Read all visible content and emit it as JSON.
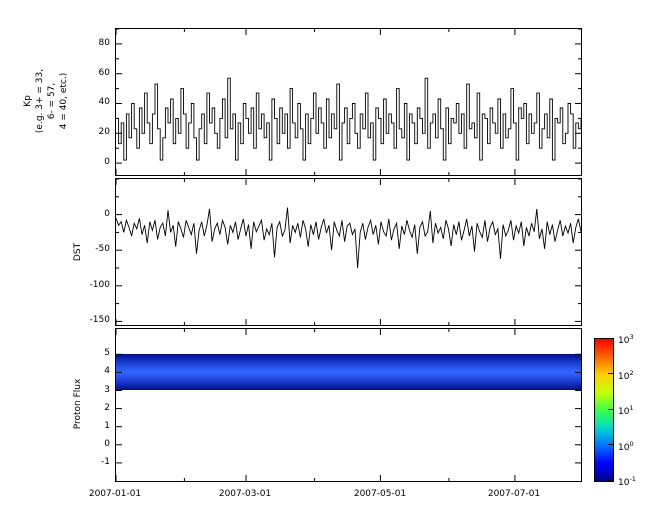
{
  "figure": {
    "background": "#ffffff",
    "x_axis": {
      "labels": [
        "2007-01-01",
        "2007-03-01",
        "2007-05-01",
        "2007-07-01"
      ],
      "major_fracs": [
        0,
        0.2796,
        0.5687,
        0.8578
      ],
      "minor_fracs": [
        0.147,
        0.427,
        0.716
      ]
    }
  },
  "panels": {
    "kp": {
      "ylabel_lines": [
        "Kp",
        "(e.g. 3+ = 33,",
        "6- = 57,",
        "4 = 40, etc.)"
      ]
    },
    "dst": {
      "ylabel": "DST"
    },
    "proton": {
      "ylabel": "Proton Flux"
    }
  },
  "colorbar": {
    "colors": [
      "#00008a",
      "#0000ff",
      "#0073ff",
      "#00d9c8",
      "#3cff46",
      "#c8ff00",
      "#ffcf00",
      "#ff6400",
      "#ff0000"
    ],
    "ticks": [
      {
        "base": "10",
        "exp": "3"
      },
      {
        "base": "10",
        "exp": "2"
      },
      {
        "base": "10",
        "exp": "1"
      },
      {
        "base": "10",
        "exp": "0"
      },
      {
        "base": "10",
        "exp": "-1"
      }
    ]
  },
  "chart_data": [
    {
      "type": "line",
      "name": "Kp",
      "x_start": "2007-01-01",
      "x_end": "2007-07-31",
      "ylim": [
        -8,
        90
      ],
      "yticks": [
        0,
        20,
        40,
        60,
        80
      ],
      "line_color": "#000000",
      "values": [
        30,
        13,
        27,
        2,
        33,
        17,
        40,
        23,
        10,
        37,
        20,
        47,
        27,
        13,
        33,
        53,
        23,
        2,
        17,
        37,
        27,
        43,
        13,
        30,
        20,
        50,
        33,
        10,
        27,
        40,
        17,
        2,
        23,
        33,
        13,
        47,
        27,
        37,
        20,
        10,
        30,
        43,
        17,
        57,
        23,
        33,
        2,
        27,
        13,
        40,
        30,
        20,
        37,
        10,
        47,
        23,
        33,
        17,
        27,
        2,
        43,
        30,
        13,
        37,
        20,
        33,
        10,
        50,
        27,
        17,
        40,
        23,
        2,
        33,
        13,
        30,
        47,
        20,
        37,
        27,
        10,
        43,
        17,
        33,
        23,
        53,
        2,
        27,
        37,
        13,
        30,
        40,
        20,
        10,
        33,
        23,
        47,
        17,
        27,
        2,
        37,
        30,
        13,
        43,
        20,
        33,
        27,
        10,
        50,
        23,
        17,
        40,
        2,
        33,
        27,
        13,
        37,
        30,
        20,
        57,
        10,
        27,
        33,
        17,
        43,
        23,
        2,
        37,
        13,
        30,
        27,
        40,
        20,
        33,
        10,
        53,
        23,
        27,
        17,
        47,
        2,
        33,
        30,
        13,
        37,
        27,
        20,
        43,
        10,
        33,
        17,
        23,
        50,
        27,
        2,
        37,
        30,
        40,
        13,
        33,
        20,
        27,
        47,
        10,
        23,
        33,
        17,
        43,
        2,
        30,
        27,
        37,
        13,
        20,
        40,
        33,
        10,
        27,
        23,
        30
      ]
    },
    {
      "type": "line",
      "name": "DST",
      "x_start": "2007-01-01",
      "x_end": "2007-07-31",
      "ylim": [
        -155,
        50
      ],
      "yticks": [
        0,
        -50,
        -100,
        -150
      ],
      "line_color": "#000000",
      "values": [
        -5,
        -15,
        -10,
        -25,
        -8,
        -18,
        -30,
        -12,
        -20,
        -5,
        -28,
        -15,
        -40,
        -10,
        -22,
        -8,
        -35,
        -18,
        -12,
        -30,
        6,
        -25,
        -15,
        -45,
        -10,
        -20,
        -32,
        -8,
        -18,
        -28,
        -12,
        -55,
        -22,
        -10,
        -30,
        -15,
        8,
        -38,
        -20,
        -12,
        -28,
        -8,
        -18,
        -42,
        -15,
        -25,
        -10,
        -35,
        -20,
        -6,
        -30,
        -14,
        -48,
        -10,
        -24,
        -16,
        -8,
        -36,
        -20,
        -28,
        -12,
        -60,
        -18,
        -10,
        -30,
        -22,
        10,
        -40,
        -15,
        -25,
        -12,
        -32,
        -8,
        -20,
        -45,
        -14,
        -28,
        -10,
        -35,
        -18,
        -6,
        -26,
        -15,
        -50,
        -10,
        -22,
        -30,
        -8,
        -38,
        -16,
        -12,
        -28,
        -20,
        -75,
        -25,
        -12,
        -35,
        -18,
        -8,
        -28,
        -15,
        -42,
        -10,
        -24,
        -30,
        -6,
        -36,
        -20,
        -12,
        -48,
        -16,
        -28,
        -8,
        -22,
        -32,
        -14,
        -55,
        -18,
        -10,
        -30,
        -24,
        5,
        -40,
        -12,
        -26,
        -18,
        -34,
        -8,
        -20,
        -44,
        -14,
        -28,
        -10,
        -36,
        -22,
        -6,
        -30,
        -16,
        -52,
        -12,
        -24,
        -32,
        -8,
        -38,
        -18,
        -10,
        -28,
        -20,
        -62,
        -14,
        -30,
        -22,
        -8,
        -36,
        -16,
        -26,
        -10,
        -44,
        -18,
        -30,
        -12,
        -24,
        8,
        -34,
        -20,
        -48,
        -10,
        -28,
        -14,
        -38,
        -22,
        -8,
        -30,
        -16,
        -26,
        -12,
        -40,
        -18,
        -6,
        -24
      ]
    },
    {
      "type": "heatmap",
      "name": "Proton Flux",
      "x_start": "2007-01-01",
      "x_end": "2007-07-31",
      "ylim": [
        -2,
        6.4
      ],
      "yticks": [
        -1,
        0,
        1,
        2,
        3,
        4,
        5
      ],
      "band": {
        "y_from": 3,
        "y_to": 5,
        "log10_flux_approx": -0.5,
        "description": "continuous blue band (flux ~0.1-1) spanning channels 3 to 5 for the entire time range",
        "colors": [
          "#000d8a",
          "#1c3fd4",
          "#3168ff",
          "#1c3fd4",
          "#000d8a"
        ]
      },
      "colorbar_range_log10": [
        -1,
        3
      ]
    }
  ]
}
